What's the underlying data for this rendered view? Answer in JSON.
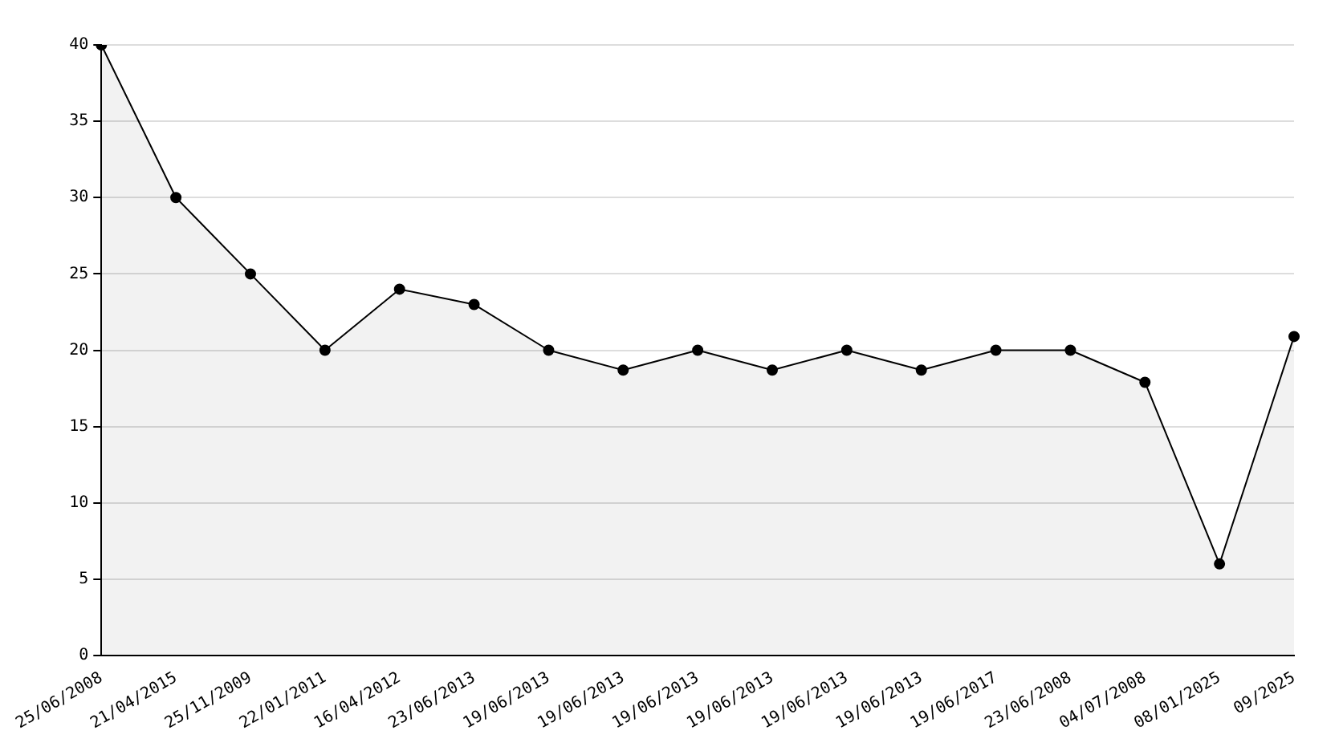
{
  "chart_data": {
    "type": "area",
    "categories": [
      "25/06/2008",
      "21/04/2015",
      "25/11/2009",
      "22/01/2011",
      "16/04/2012",
      "23/06/2013",
      "19/06/2013",
      "19/06/2013",
      "19/06/2013",
      "19/06/2013",
      "19/06/2013",
      "19/06/2013",
      "19/06/2017",
      "23/06/2008",
      "04/07/2008",
      "08/01/2025",
      "09/2025"
    ],
    "series": [
      {
        "color": "#000000",
        "values": [
          40,
          30,
          25,
          20,
          24,
          23,
          20,
          18.7,
          20,
          18.7,
          20,
          18.7,
          20,
          20,
          17.9,
          6,
          20.9
        ]
      }
    ],
    "ylim": [
      0,
      40
    ],
    "yticks": [
      0,
      5,
      10,
      15,
      20,
      25,
      30,
      35,
      40
    ],
    "grid": "y",
    "legend": false,
    "marker": "circle"
  }
}
